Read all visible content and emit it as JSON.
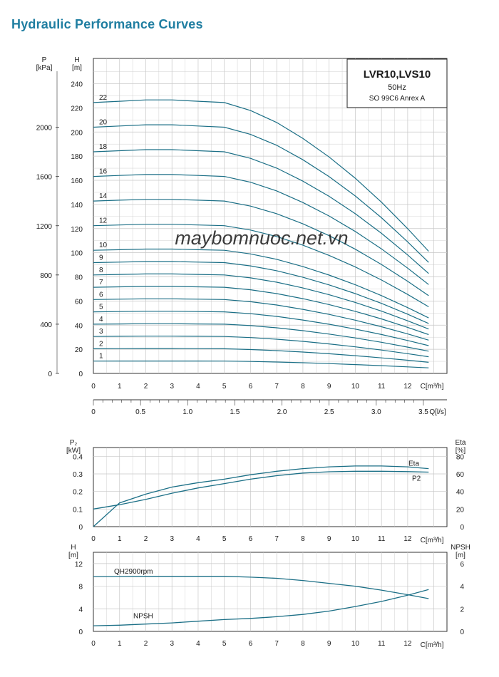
{
  "page": {
    "title": "Hydraulic Performance Curves"
  },
  "watermark": "maybomnuoc.net.vn",
  "colors": {
    "curve": "#1b6f86",
    "grid": "#c7c7c7",
    "axis": "#333333",
    "title": "#1f7ea1",
    "watermark": "#6c7ee6"
  },
  "chart_data": [
    {
      "id": "qh",
      "type": "line",
      "title": "LVR10,LVS10",
      "subtitle": "50Hz",
      "standard": "SO 99C6 Anrex A",
      "y_left_label": "P\n[kPa]",
      "y_left_ticks": [
        "0",
        "400",
        "800",
        "1200",
        "1600",
        "2000"
      ],
      "y_label": "H\n[m]",
      "y_ticks": [
        "0",
        "20",
        "40",
        "60",
        "80",
        "100",
        "120",
        "140",
        "160",
        "180",
        "200",
        "220",
        "240"
      ],
      "ylim": [
        0,
        240
      ],
      "x_label": "C[m³/h]",
      "x_ticks": [
        "0",
        "1",
        "2",
        "3",
        "4",
        "5",
        "6",
        "7",
        "8",
        "9",
        "10",
        "11",
        "12"
      ],
      "xlim": [
        0,
        13.5
      ],
      "x2_label": "Q[l/s]",
      "x2_ticks": [
        {
          "v": 0,
          "label": "0"
        },
        {
          "v": 0.5,
          "label": "0.5"
        },
        {
          "v": 1.0,
          "label": "1.0"
        },
        {
          "v": 1.5,
          "label": "1.5"
        },
        {
          "v": 2.0,
          "label": "2.0"
        },
        {
          "v": 2.5,
          "label": "2.5"
        },
        {
          "v": 3.0,
          "label": "3.0"
        },
        {
          "v": 3.5,
          "label": "3.5"
        }
      ],
      "stage_curve": {
        "x": [
          0,
          1,
          2,
          3,
          4,
          5,
          6,
          7,
          8,
          9,
          10,
          11,
          12,
          12.8
        ],
        "h_per_stage": [
          10.2,
          10.25,
          10.3,
          10.3,
          10.25,
          10.2,
          9.9,
          9.45,
          8.85,
          8.15,
          7.35,
          6.45,
          5.45,
          4.6
        ]
      },
      "stages": [
        {
          "label": "1",
          "n": 1
        },
        {
          "label": "2",
          "n": 2
        },
        {
          "label": "3",
          "n": 3
        },
        {
          "label": "4",
          "n": 4
        },
        {
          "label": "5",
          "n": 5
        },
        {
          "label": "6",
          "n": 6
        },
        {
          "label": "7",
          "n": 7
        },
        {
          "label": "8",
          "n": 8
        },
        {
          "label": "9",
          "n": 9
        },
        {
          "label": "10",
          "n": 10
        },
        {
          "label": "12",
          "n": 12
        },
        {
          "label": "14",
          "n": 14
        },
        {
          "label": "16",
          "n": 16
        },
        {
          "label": "18",
          "n": 18
        },
        {
          "label": "20",
          "n": 20
        },
        {
          "label": "22",
          "n": 22
        }
      ]
    },
    {
      "id": "power",
      "type": "line",
      "y_label": "P₂\n[kW]",
      "y_ticks": [
        "0",
        "0.1",
        "0.2",
        "0.3",
        "0.4"
      ],
      "ylim": [
        0,
        0.45
      ],
      "y_right_label": "Eta\n[%]",
      "y_right_ticks": [
        "0",
        "20",
        "40",
        "60",
        "80"
      ],
      "y_right_lim": [
        0,
        90
      ],
      "x_label": "C[m³/h]",
      "x_ticks": [
        "0",
        "1",
        "2",
        "3",
        "4",
        "5",
        "6",
        "7",
        "8",
        "9",
        "10",
        "11",
        "12"
      ],
      "xlim": [
        0,
        13.5
      ],
      "series": [
        {
          "name": "P2",
          "axis": "left",
          "x": [
            0,
            1,
            2,
            3,
            4,
            5,
            6,
            7,
            8,
            9,
            10,
            11,
            12,
            12.8
          ],
          "y": [
            0.1,
            0.125,
            0.155,
            0.19,
            0.22,
            0.245,
            0.27,
            0.29,
            0.305,
            0.312,
            0.315,
            0.315,
            0.313,
            0.31
          ]
        },
        {
          "name": "Eta",
          "axis": "right",
          "x": [
            0,
            1,
            2,
            3,
            4,
            5,
            6,
            7,
            8,
            9,
            10,
            11,
            12,
            12.8
          ],
          "y": [
            0,
            27,
            37,
            45,
            50,
            54,
            59,
            63,
            66,
            68,
            69,
            69,
            68,
            66
          ]
        }
      ]
    },
    {
      "id": "npsh",
      "type": "line",
      "y_label": "H\n[m]",
      "y_ticks": [
        "0",
        "4",
        "8",
        "12"
      ],
      "ylim": [
        0,
        14
      ],
      "y_right_label": "NPSH\n[m]",
      "y_right_ticks": [
        "0",
        "2",
        "4",
        "6"
      ],
      "y_right_lim": [
        0,
        7
      ],
      "x_label": "C[m³/h]",
      "x_ticks": [
        "0",
        "1",
        "2",
        "3",
        "4",
        "5",
        "6",
        "7",
        "8",
        "9",
        "10",
        "11",
        "12"
      ],
      "xlim": [
        0,
        13.5
      ],
      "series": [
        {
          "name": "QH2900rpm",
          "axis": "left",
          "x": [
            0,
            1,
            2,
            3,
            4,
            5,
            6,
            7,
            8,
            9,
            10,
            11,
            12,
            12.8
          ],
          "y": [
            9.7,
            9.72,
            9.75,
            9.75,
            9.75,
            9.75,
            9.6,
            9.4,
            9.0,
            8.5,
            8.0,
            7.3,
            6.5,
            5.8
          ]
        },
        {
          "name": "NPSH",
          "axis": "right",
          "x": [
            0,
            1,
            2,
            3,
            4,
            5,
            6,
            7,
            8,
            9,
            10,
            11,
            12,
            12.8
          ],
          "y": [
            0.5,
            0.55,
            0.65,
            0.75,
            0.9,
            1.05,
            1.15,
            1.3,
            1.5,
            1.8,
            2.2,
            2.65,
            3.2,
            3.7
          ]
        }
      ]
    }
  ]
}
